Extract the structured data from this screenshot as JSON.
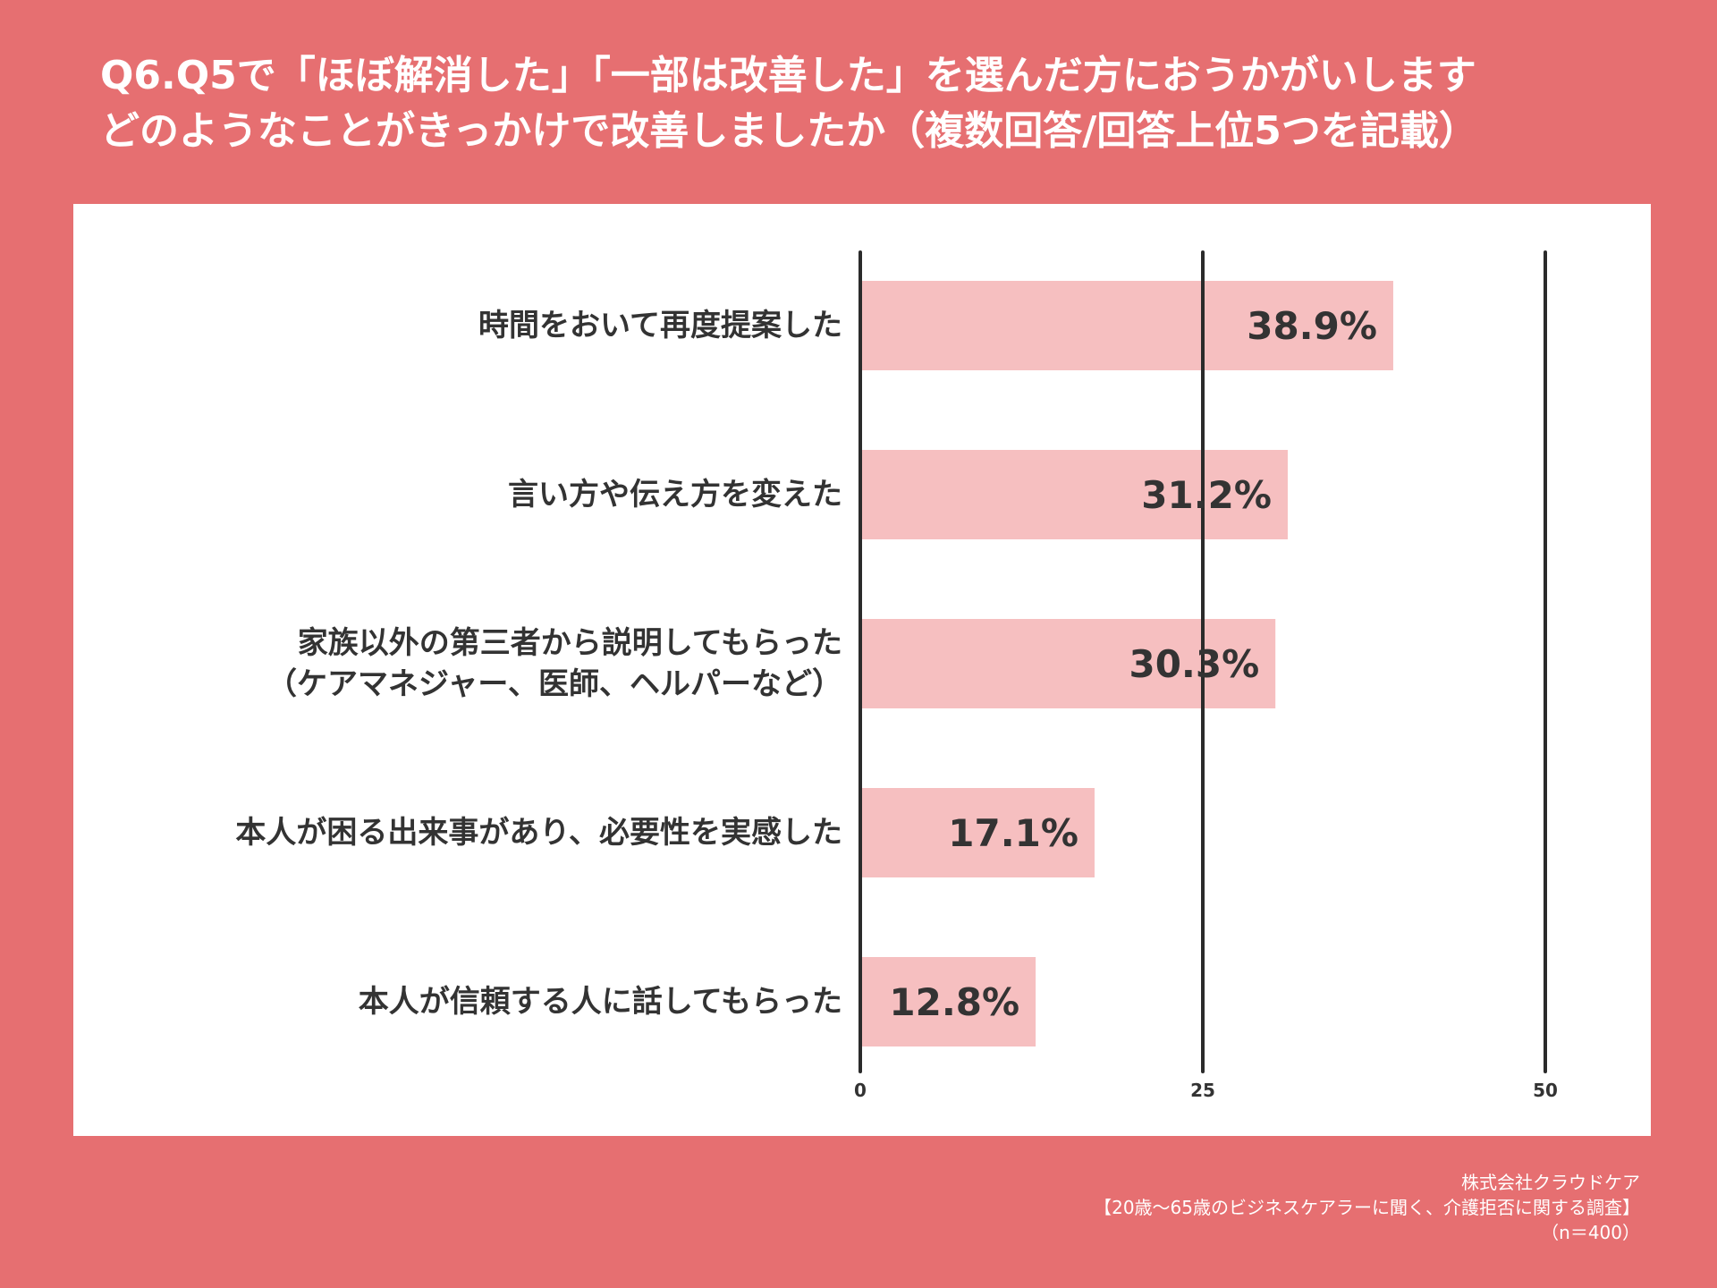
{
  "title": {
    "line1": "Q6.Q5で「ほぼ解消した」「一部は改善した」を選んだ方におうかがいします",
    "line2": "どのようなことがきっかけで改善しましたか（複数回答/回答上位5つを記載）"
  },
  "chart_data": {
    "type": "bar",
    "orientation": "horizontal",
    "categories": [
      [
        "時間をおいて再度提案した"
      ],
      [
        "言い方や伝え方を変えた"
      ],
      [
        "家族以外の第三者から説明してもらった",
        "（ケアマネジャー、医師、ヘルパーなど）"
      ],
      [
        "本人が困る出来事があり、必要性を実感した"
      ],
      [
        "本人が信頼する人に話してもらった"
      ]
    ],
    "values": [
      38.9,
      31.2,
      30.3,
      17.1,
      12.8
    ],
    "value_labels": [
      "38.9%",
      "31.2%",
      "30.3%",
      "17.1%",
      "12.8%"
    ],
    "xlim": [
      0,
      50
    ],
    "ticks": [
      0,
      25,
      50
    ],
    "tick_labels": [
      "0",
      "25",
      "50"
    ],
    "grid": true,
    "bar_color": "#f6bfc0"
  },
  "footer": {
    "company": "株式会社クラウドケア",
    "survey": "【20歳～65歳のビジネスケアラーに聞く、介護拒否に関する調査】",
    "sample": "（n＝400）"
  },
  "colors": {
    "background": "#e66f71",
    "panel": "#ffffff",
    "text": "#333333",
    "gridline": "#2b2b2b"
  }
}
